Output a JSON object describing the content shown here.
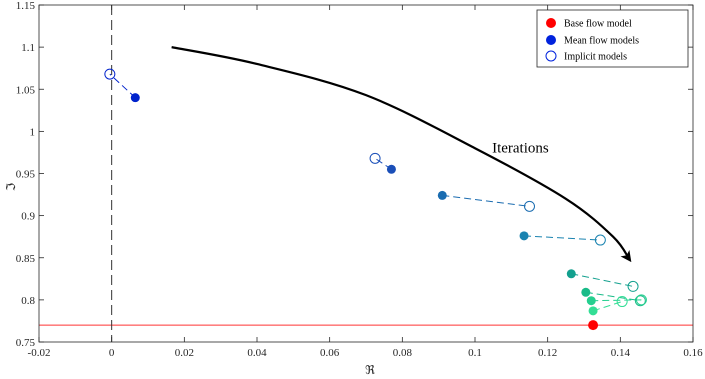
{
  "chart_data": {
    "type": "scatter",
    "xlabel": "ℜ",
    "ylabel": "ℑ",
    "xlim": [
      -0.02,
      0.16
    ],
    "ylim": [
      0.75,
      1.15
    ],
    "xticks": [
      -0.02,
      0,
      0.02,
      0.04,
      0.06,
      0.08,
      0.1,
      0.12,
      0.14,
      0.16
    ],
    "xtick_labels": [
      "-0.02",
      "0",
      "0.02",
      "0.04",
      "0.06",
      "0.08",
      "0.1",
      "0.12",
      "0.14",
      "0.16"
    ],
    "yticks": [
      0.75,
      0.8,
      0.85,
      0.9,
      0.95,
      1.0,
      1.05,
      1.1,
      1.15
    ],
    "ytick_labels": [
      "0.75",
      "0.8",
      "0.85",
      "0.9",
      "0.95",
      "1",
      "1.05",
      "1.1",
      "1.15"
    ],
    "grid": false,
    "legend_position": "top-right",
    "legend": [
      {
        "label": "Base flow model",
        "marker": "filled",
        "color": "#ff0000"
      },
      {
        "label": "Mean flow models",
        "marker": "filled",
        "color": "#0022dd"
      },
      {
        "label": "Implicit models",
        "marker": "open",
        "color": "#0022dd"
      }
    ],
    "base_flow": {
      "x": 0.1325,
      "y": 0.77,
      "color": "#ff0000"
    },
    "reference_line": {
      "y": 0.77,
      "color": "#ff3333"
    },
    "vertical_line": {
      "x": 0
    },
    "pairs": [
      {
        "mean": [
          0.0065,
          1.04
        ],
        "implicit": [
          -0.0005,
          1.068
        ],
        "color": "#0022cc"
      },
      {
        "mean": [
          0.077,
          0.955
        ],
        "implicit": [
          0.0725,
          0.968
        ],
        "color": "#1a4fb8"
      },
      {
        "mean": [
          0.091,
          0.924
        ],
        "implicit": [
          0.115,
          0.911
        ],
        "color": "#1a6cb0"
      },
      {
        "mean": [
          0.1135,
          0.876
        ],
        "implicit": [
          0.1345,
          0.871
        ],
        "color": "#1a83b0"
      },
      {
        "mean": [
          0.1265,
          0.831
        ],
        "implicit": [
          0.1435,
          0.816
        ],
        "color": "#13a08e"
      },
      {
        "mean": [
          0.1305,
          0.809
        ],
        "implicit": [
          0.1455,
          0.799
        ],
        "color": "#18bb88"
      },
      {
        "mean": [
          0.132,
          0.799
        ],
        "implicit": [
          0.1458,
          0.8
        ],
        "color": "#25cf8f"
      },
      {
        "mean": [
          0.1325,
          0.787
        ],
        "implicit": [
          0.1405,
          0.798
        ],
        "color": "#33de95"
      }
    ],
    "arrow": {
      "label": "Iterations",
      "label_at": [
        0.1125,
        0.975
      ],
      "path": [
        [
          0.0165,
          1.1
        ],
        [
          0.04,
          1.08
        ],
        [
          0.07,
          1.043
        ],
        [
          0.1,
          0.98
        ],
        [
          0.125,
          0.92
        ],
        [
          0.138,
          0.875
        ],
        [
          0.1425,
          0.848
        ]
      ]
    }
  }
}
